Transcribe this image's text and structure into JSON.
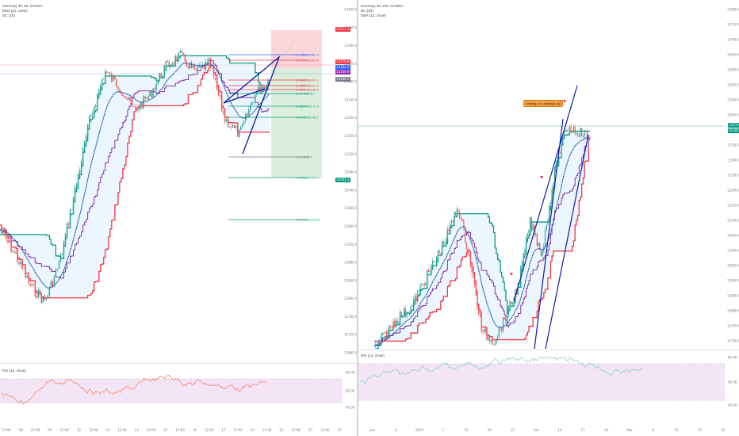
{
  "left": {
    "legend": [
      "Germany 30, 60, OANDA",
      "EMA (12, close)",
      "DC (20)"
    ],
    "price_ticks": [
      "13440.0",
      "13400.0",
      "13360.0",
      "13320.0",
      "13280.0",
      "13240.0",
      "13200.0",
      "13160.0",
      "13120.0",
      "13080.0",
      "13040.0",
      "13000.0",
      "12960.0",
      "12920.0",
      "12880.0",
      "12840.0",
      "12800.0",
      "12760.0",
      "12720.0",
      "12680.0"
    ],
    "tags": [
      {
        "text": "13511.1",
        "color": "#f23645"
      },
      {
        "text": "13378.8",
        "color": "#f23645"
      },
      {
        "text": "13362.5",
        "color": "#2962ff"
      },
      {
        "text": "13336.9",
        "color": "#9c27b0"
      },
      {
        "text": "13296.5",
        "color": "#787b86"
      },
      {
        "text": "13045.3",
        "color": "#089981"
      }
    ],
    "fib_levels": [
      {
        "text": "(1.378) 13382.3",
        "color": "#2962ff"
      },
      {
        "text": "(1.272) 13380.6",
        "color": "#f23645"
      },
      {
        "text": "(1.000) 13300.2",
        "color": "#f23645"
      },
      {
        "text": "(0.786) 13252.0",
        "color": "#f23645"
      },
      {
        "text": "(0.618) 13238.4",
        "color": "#f23645"
      },
      {
        "text": "(0.5) 13206.7",
        "color": "#089981"
      },
      {
        "text": "(0.382) 13174.3",
        "color": "#089981"
      },
      {
        "text": "(0.236) 13148.7",
        "color": "#089981"
      },
      {
        "text": "(0) 13068.6",
        "color": "#787b86"
      },
      {
        "text": "(-0.382) 12994.4",
        "color": "#089981"
      },
      {
        "text": "(-0.618) 12916.4",
        "color": "#089981"
      }
    ],
    "time_ticks": [
      "12:00",
      "08",
      "12:00",
      "09",
      "12:00",
      "10",
      "12:00",
      "13",
      "12:00",
      "14",
      "12:00",
      "15",
      "12:00",
      "16",
      "12:00",
      "17",
      "12:00",
      "20",
      "12:00",
      "21",
      "12:00",
      "22",
      "12:00",
      "23"
    ],
    "rsi_legend": "RSI (14, close)",
    "rsi_ticks": [
      "80.00",
      "60.00",
      "40.00"
    ]
  },
  "right": {
    "legend": [
      "Germany 30, 240, OANDA",
      "DC (20)",
      "EMA (12, close)"
    ],
    "price_ticks": [
      "13800.0",
      "13750.0",
      "13700.0",
      "13650.0",
      "13600.0",
      "13550.0",
      "13500.0",
      "13450.0",
      "13400.0",
      "13350.0",
      "13300.0",
      "13250.0",
      "13200.0",
      "13150.0",
      "13100.0",
      "13050.0",
      "13000.0",
      "12950.0",
      "12900.0",
      "12850.0",
      "12800.0",
      "12750.0",
      "12700.0"
    ],
    "tags": [
      {
        "text": "13375.8",
        "color": "#089981"
      },
      {
        "text": "03:48:55",
        "color": "#089981"
      }
    ],
    "annotation": "Waiting on a pullback dip",
    "time_ticks": [
      "Jan",
      "6",
      "2020",
      "7",
      "13",
      "20",
      "27",
      "Feb",
      "10",
      "17",
      "24",
      "Mar",
      "9",
      "16",
      "23",
      "30"
    ],
    "rsi_legend": "RSI (14, close)",
    "rsi_ticks": [
      "80.00",
      "60.00",
      "40.00"
    ]
  },
  "colors": {
    "upper_band": "#f23645",
    "lower_band": "#089981",
    "mid_band": "#7b1fa2",
    "ema": "#0d47a1",
    "trend": "#0d1ba6",
    "fill": "#e3f2fd",
    "rsi_bg": "#f3e5f5",
    "rsi_line_left": "#f57c61",
    "rsi_line_right": "#80cbc4"
  }
}
